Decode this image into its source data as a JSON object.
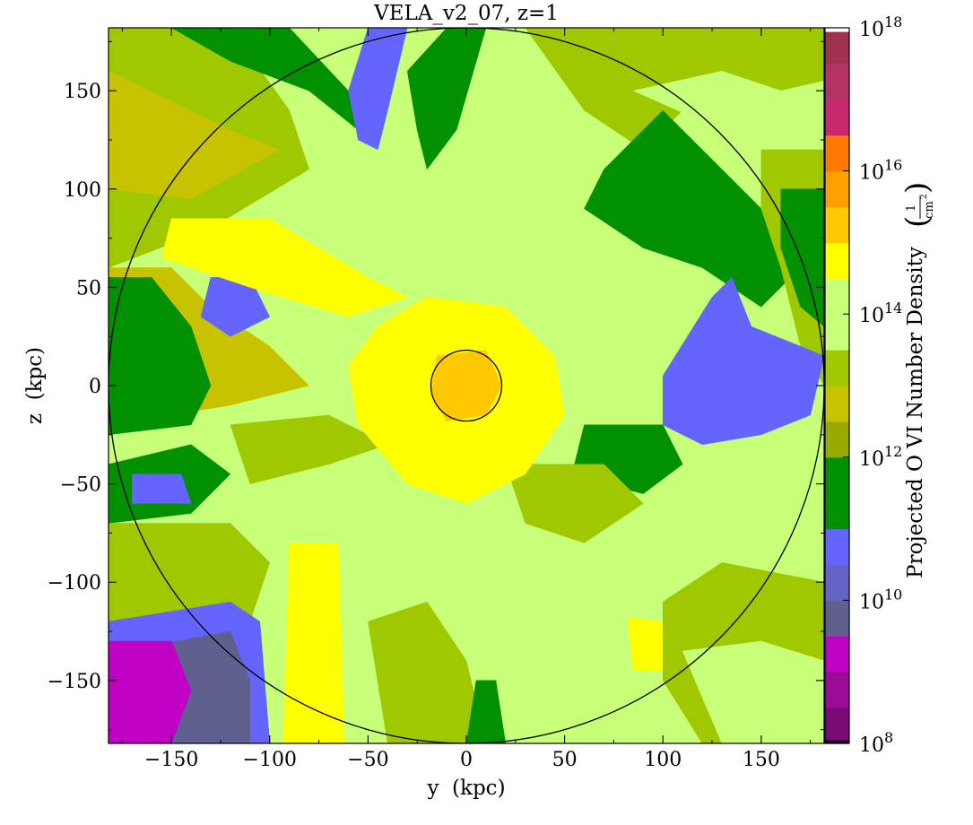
{
  "chart_data": {
    "type": "heatmap",
    "title": "VELA_v2_07, z=1",
    "xlabel": "y  (kpc)",
    "ylabel": "z  (kpc)",
    "xlim": [
      -182,
      182
    ],
    "ylim": [
      -182,
      182
    ],
    "x_ticks": [
      -150,
      -100,
      -50,
      0,
      50,
      100,
      150
    ],
    "x_tick_labels": [
      "−150",
      "−100",
      "−50",
      "0",
      "50",
      "100",
      "150"
    ],
    "y_ticks": [
      -150,
      -100,
      -50,
      0,
      50,
      100,
      150
    ],
    "y_tick_labels": [
      "−150",
      "−100",
      "−50",
      "0",
      "50",
      "100",
      "150"
    ],
    "colorbar": {
      "label": "Projected O VI Number Density",
      "unit_numerator": "1",
      "unit_denominator": "cm",
      "unit_exponent": "2",
      "scale": "log",
      "range": [
        8,
        18
      ],
      "ticks": [
        {
          "exp": 8,
          "base": "10",
          "sup": "8"
        },
        {
          "exp": 10,
          "base": "10",
          "sup": "10"
        },
        {
          "exp": 12,
          "base": "10",
          "sup": "12"
        },
        {
          "exp": 14,
          "base": "10",
          "sup": "14"
        },
        {
          "exp": 16,
          "base": "10",
          "sup": "16"
        },
        {
          "exp": 18,
          "base": "10",
          "sup": "18"
        }
      ],
      "levels": [
        {
          "lo": 8.0,
          "hi": 8.05,
          "color": "#1a0014"
        },
        {
          "lo": 8.05,
          "hi": 8.5,
          "color": "#7a0a74"
        },
        {
          "lo": 8.5,
          "hi": 9.0,
          "color": "#9a0c98"
        },
        {
          "lo": 9.0,
          "hi": 9.5,
          "color": "#c000c4"
        },
        {
          "lo": 9.5,
          "hi": 10.0,
          "color": "#606090"
        },
        {
          "lo": 10.0,
          "hi": 10.5,
          "color": "#6464c8"
        },
        {
          "lo": 10.5,
          "hi": 11.0,
          "color": "#6464ff"
        },
        {
          "lo": 11.0,
          "hi": 11.5,
          "color": "#009000"
        },
        {
          "lo": 11.5,
          "hi": 12.0,
          "color": "#009000"
        },
        {
          "lo": 12.0,
          "hi": 12.5,
          "color": "#96aa00"
        },
        {
          "lo": 12.5,
          "hi": 13.0,
          "color": "#c8c300"
        },
        {
          "lo": 13.0,
          "hi": 13.5,
          "color": "#a0c800"
        },
        {
          "lo": 13.5,
          "hi": 14.0,
          "color": "#c8ff78"
        },
        {
          "lo": 14.0,
          "hi": 14.5,
          "color": "#c8ff78"
        },
        {
          "lo": 14.5,
          "hi": 15.0,
          "color": "#ffff00"
        },
        {
          "lo": 15.0,
          "hi": 15.5,
          "color": "#ffc800"
        },
        {
          "lo": 15.5,
          "hi": 16.0,
          "color": "#ffa000"
        },
        {
          "lo": 16.0,
          "hi": 16.5,
          "color": "#ff7800"
        },
        {
          "lo": 16.5,
          "hi": 17.0,
          "color": "#c8286e"
        },
        {
          "lo": 17.0,
          "hi": 17.5,
          "color": "#b43264"
        },
        {
          "lo": 17.5,
          "hi": 17.95,
          "color": "#a0324b"
        },
        {
          "lo": 17.95,
          "hi": 18.0,
          "color": "#ffffff"
        }
      ]
    },
    "circles": [
      {
        "name": "virial-radius-circle",
        "center": [
          0,
          0
        ],
        "radius": 182,
        "color": "#000000"
      },
      {
        "name": "galaxy-radius-circle",
        "center": [
          0,
          0
        ],
        "radius": 18,
        "color": "#000000"
      }
    ],
    "regions": [
      {
        "color": "#c8ff78",
        "polygon": [
          [
            -182,
            182
          ],
          [
            182,
            182
          ],
          [
            182,
            -182
          ],
          [
            -182,
            -182
          ]
        ]
      },
      {
        "color": "#a0c800",
        "polygon": [
          [
            -182,
            182
          ],
          [
            -120,
            182
          ],
          [
            -90,
            140
          ],
          [
            -80,
            110
          ],
          [
            -130,
            80
          ],
          [
            -182,
            60
          ]
        ]
      },
      {
        "color": "#c8c300",
        "polygon": [
          [
            -182,
            160
          ],
          [
            -120,
            130
          ],
          [
            -95,
            120
          ],
          [
            -140,
            95
          ],
          [
            -182,
            100
          ]
        ]
      },
      {
        "color": "#009000",
        "polygon": [
          [
            -150,
            182
          ],
          [
            -90,
            182
          ],
          [
            -60,
            150
          ],
          [
            -55,
            130
          ],
          [
            -80,
            150
          ],
          [
            -120,
            165
          ]
        ]
      },
      {
        "color": "#6464ff",
        "polygon": [
          [
            -60,
            150
          ],
          [
            -50,
            182
          ],
          [
            -30,
            182
          ],
          [
            -40,
            140
          ],
          [
            -45,
            120
          ],
          [
            -55,
            125
          ]
        ]
      },
      {
        "color": "#009000",
        "polygon": [
          [
            -30,
            160
          ],
          [
            -10,
            182
          ],
          [
            10,
            182
          ],
          [
            -5,
            130
          ],
          [
            -20,
            110
          ],
          [
            -25,
            130
          ]
        ]
      },
      {
        "color": "#a0c800",
        "polygon": [
          [
            30,
            182
          ],
          [
            182,
            182
          ],
          [
            182,
            140
          ],
          [
            120,
            150
          ],
          [
            90,
            120
          ],
          [
            60,
            140
          ]
        ]
      },
      {
        "color": "#c8ff78",
        "polygon": [
          [
            85,
            150
          ],
          [
            130,
            160
          ],
          [
            160,
            150
          ],
          [
            182,
            155
          ],
          [
            182,
            110
          ],
          [
            130,
            130
          ]
        ]
      },
      {
        "color": "#009000",
        "polygon": [
          [
            80,
            120
          ],
          [
            100,
            140
          ],
          [
            130,
            110
          ],
          [
            160,
            80
          ],
          [
            170,
            60
          ],
          [
            150,
            40
          ],
          [
            120,
            60
          ],
          [
            90,
            70
          ],
          [
            60,
            90
          ],
          [
            70,
            110
          ]
        ]
      },
      {
        "color": "#a0c800",
        "polygon": [
          [
            150,
            120
          ],
          [
            182,
            120
          ],
          [
            182,
            0
          ],
          [
            170,
            20
          ],
          [
            160,
            60
          ],
          [
            150,
            90
          ]
        ]
      },
      {
        "color": "#009000",
        "polygon": [
          [
            160,
            100
          ],
          [
            182,
            100
          ],
          [
            182,
            30
          ],
          [
            170,
            40
          ],
          [
            160,
            70
          ]
        ]
      },
      {
        "color": "#6464ff",
        "polygon": [
          [
            100,
            5
          ],
          [
            125,
            45
          ],
          [
            135,
            55
          ],
          [
            145,
            30
          ],
          [
            170,
            20
          ],
          [
            182,
            15
          ],
          [
            175,
            -15
          ],
          [
            150,
            -25
          ],
          [
            120,
            -30
          ],
          [
            100,
            -20
          ]
        ]
      },
      {
        "color": "#009000",
        "polygon": [
          [
            60,
            -20
          ],
          [
            100,
            -20
          ],
          [
            110,
            -40
          ],
          [
            90,
            -55
          ],
          [
            70,
            -50
          ],
          [
            55,
            -40
          ]
        ]
      },
      {
        "color": "#c8c300",
        "polygon": [
          [
            -182,
            60
          ],
          [
            -150,
            60
          ],
          [
            -130,
            40
          ],
          [
            -100,
            20
          ],
          [
            -80,
            0
          ],
          [
            -120,
            -10
          ],
          [
            -182,
            -20
          ]
        ]
      },
      {
        "color": "#009000",
        "polygon": [
          [
            -182,
            55
          ],
          [
            -160,
            55
          ],
          [
            -140,
            30
          ],
          [
            -130,
            0
          ],
          [
            -140,
            -20
          ],
          [
            -182,
            -25
          ]
        ]
      },
      {
        "color": "#6464ff",
        "polygon": [
          [
            -130,
            55
          ],
          [
            -110,
            55
          ],
          [
            -100,
            35
          ],
          [
            -120,
            25
          ],
          [
            -135,
            35
          ]
        ]
      },
      {
        "color": "#009000",
        "polygon": [
          [
            -182,
            -40
          ],
          [
            -140,
            -30
          ],
          [
            -120,
            -45
          ],
          [
            -140,
            -65
          ],
          [
            -182,
            -70
          ]
        ]
      },
      {
        "color": "#6464ff",
        "polygon": [
          [
            -170,
            -45
          ],
          [
            -145,
            -45
          ],
          [
            -140,
            -60
          ],
          [
            -170,
            -60
          ]
        ]
      },
      {
        "color": "#a0c800",
        "polygon": [
          [
            -182,
            -70
          ],
          [
            -120,
            -70
          ],
          [
            -100,
            -90
          ],
          [
            -110,
            -120
          ],
          [
            -182,
            -120
          ]
        ]
      },
      {
        "color": "#6464ff",
        "polygon": [
          [
            -182,
            -120
          ],
          [
            -120,
            -110
          ],
          [
            -105,
            -120
          ],
          [
            -100,
            -182
          ],
          [
            -182,
            -182
          ]
        ]
      },
      {
        "color": "#606090",
        "polygon": [
          [
            -175,
            -135
          ],
          [
            -120,
            -125
          ],
          [
            -110,
            -150
          ],
          [
            -110,
            -182
          ],
          [
            -175,
            -182
          ]
        ]
      },
      {
        "color": "#c000c4",
        "polygon": [
          [
            -182,
            -130
          ],
          [
            -150,
            -130
          ],
          [
            -140,
            -155
          ],
          [
            -150,
            -182
          ],
          [
            -182,
            -182
          ]
        ]
      },
      {
        "color": "#ffff00",
        "polygon": [
          [
            -90,
            -80
          ],
          [
            -65,
            -80
          ],
          [
            -62,
            -182
          ],
          [
            -93,
            -182
          ]
        ]
      },
      {
        "color": "#ffff00",
        "polygon": [
          [
            -150,
            85
          ],
          [
            -100,
            85
          ],
          [
            -50,
            55
          ],
          [
            -30,
            45
          ],
          [
            -60,
            35
          ],
          [
            -110,
            50
          ],
          [
            -155,
            65
          ]
        ]
      },
      {
        "color": "#a0c800",
        "polygon": [
          [
            -50,
            -120
          ],
          [
            -20,
            -110
          ],
          [
            0,
            -140
          ],
          [
            10,
            -182
          ],
          [
            -40,
            -182
          ]
        ]
      },
      {
        "color": "#009000",
        "polygon": [
          [
            5,
            -150
          ],
          [
            15,
            -150
          ],
          [
            20,
            -182
          ],
          [
            0,
            -182
          ]
        ]
      },
      {
        "color": "#a0c800",
        "polygon": [
          [
            -120,
            -20
          ],
          [
            -70,
            -15
          ],
          [
            -40,
            -30
          ],
          [
            -70,
            -40
          ],
          [
            -110,
            -50
          ]
        ]
      },
      {
        "color": "#a0c800",
        "polygon": [
          [
            20,
            -40
          ],
          [
            70,
            -40
          ],
          [
            90,
            -60
          ],
          [
            60,
            -80
          ],
          [
            30,
            -70
          ]
        ]
      },
      {
        "color": "#ffff00",
        "polygon": [
          [
            -45,
            30
          ],
          [
            -20,
            45
          ],
          [
            20,
            40
          ],
          [
            45,
            15
          ],
          [
            50,
            -15
          ],
          [
            30,
            -45
          ],
          [
            0,
            -60
          ],
          [
            -30,
            -50
          ],
          [
            -55,
            -20
          ],
          [
            -60,
            10
          ]
        ]
      },
      {
        "color": "#ffc800",
        "polygon": [
          [
            -15,
            15
          ],
          [
            10,
            18
          ],
          [
            18,
            0
          ],
          [
            10,
            -15
          ],
          [
            -10,
            -18
          ],
          [
            -18,
            -5
          ]
        ]
      },
      {
        "color": "#ffff00",
        "polygon": [
          [
            82,
            -118
          ],
          [
            115,
            -122
          ],
          [
            112,
            -145
          ],
          [
            85,
            -145
          ]
        ]
      },
      {
        "color": "#ffff00",
        "polygon": [
          [
            125,
            -115
          ],
          [
            150,
            -115
          ],
          [
            150,
            -132
          ],
          [
            125,
            -132
          ]
        ]
      },
      {
        "color": "#ffff00",
        "polygon": [
          [
            125,
            -100
          ],
          [
            145,
            -95
          ],
          [
            150,
            -110
          ],
          [
            130,
            -112
          ]
        ]
      },
      {
        "color": "#a0c800",
        "polygon": [
          [
            100,
            -110
          ],
          [
            130,
            -90
          ],
          [
            182,
            -100
          ],
          [
            182,
            -182
          ],
          [
            120,
            -182
          ],
          [
            100,
            -150
          ]
        ]
      },
      {
        "color": "#c8ff78",
        "polygon": [
          [
            110,
            -135
          ],
          [
            150,
            -130
          ],
          [
            182,
            -140
          ],
          [
            182,
            -182
          ],
          [
            130,
            -182
          ]
        ]
      }
    ]
  }
}
